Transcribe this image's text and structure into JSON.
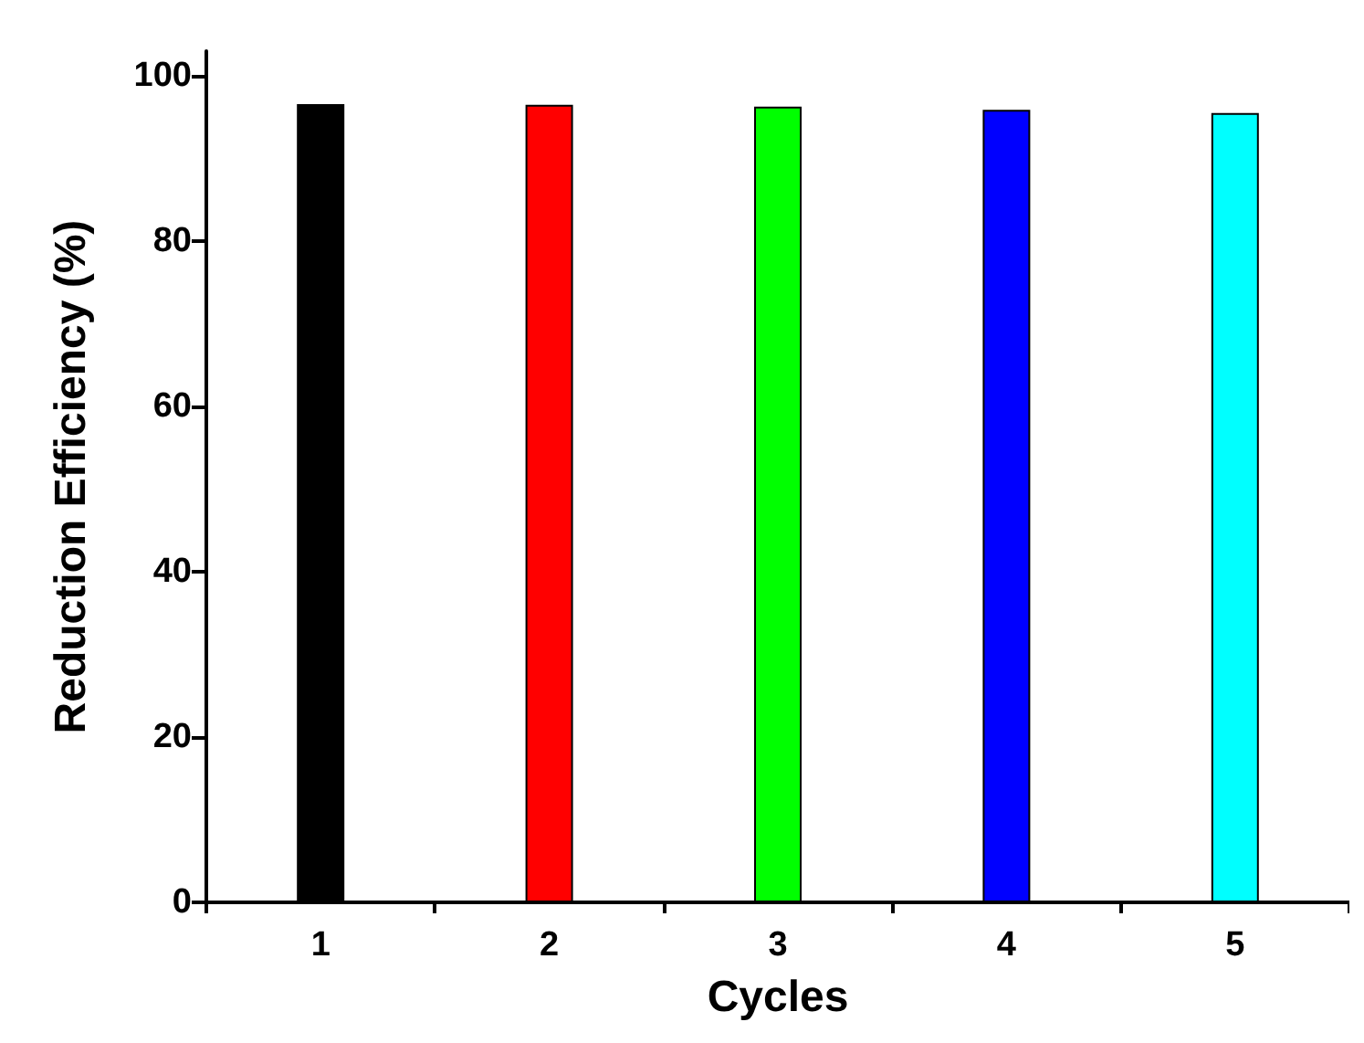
{
  "chart_data": {
    "type": "bar",
    "xlabel": "Cycles",
    "ylabel": "Reduction Efficiency (%)",
    "categories": [
      "1",
      "2",
      "3",
      "4",
      "5"
    ],
    "values": [
      96.6,
      96.5,
      96.3,
      95.9,
      95.5
    ],
    "colors": [
      "#000000",
      "#ff0000",
      "#00ff00",
      "#0000ff",
      "#00ffff"
    ],
    "ylim": [
      0,
      103
    ],
    "yticks": [
      0,
      20,
      40,
      60,
      80,
      100
    ],
    "grid": false
  }
}
